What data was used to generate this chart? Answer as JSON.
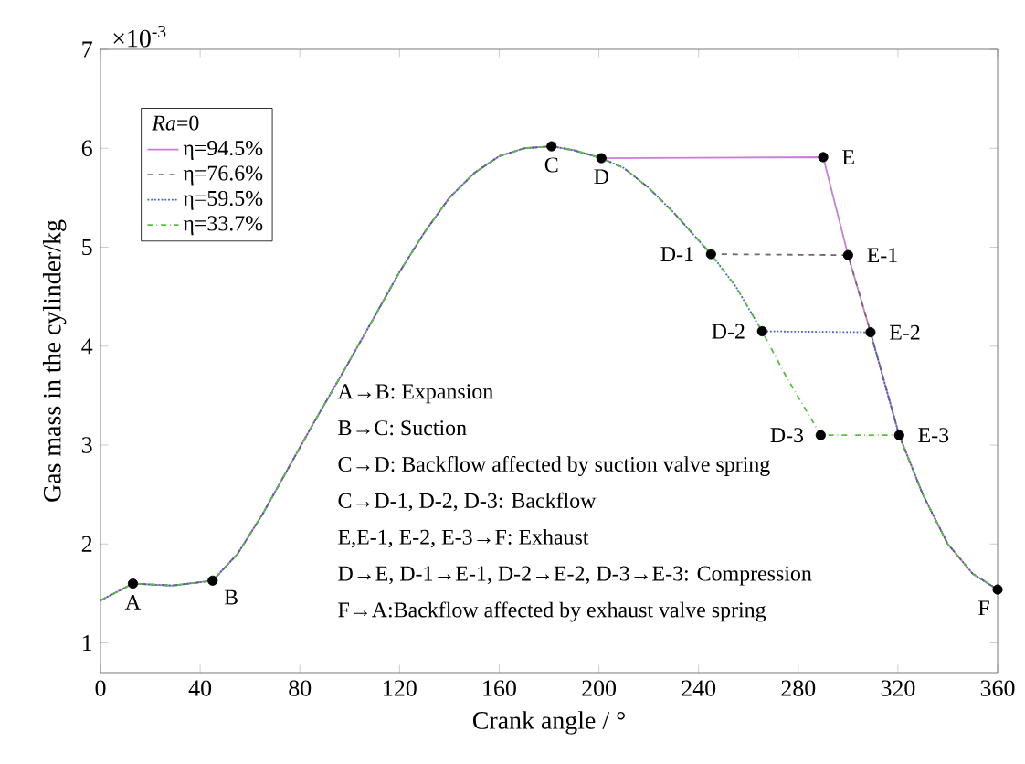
{
  "chart_data": {
    "type": "line",
    "xlabel": "Crank angle / °",
    "ylabel": "Gas mass in the cylinder/kg",
    "xlim": [
      0,
      360
    ],
    "ylim": [
      0.7,
      7
    ],
    "xticks": [
      0,
      40,
      80,
      120,
      160,
      200,
      240,
      280,
      320,
      360
    ],
    "yticks": [
      1,
      2,
      3,
      4,
      5,
      6,
      7
    ],
    "legend": "top left",
    "legend_title": "*Ra*=0",
    "grid": false,
    "series": [
      {
        "name": "η=94.5%",
        "color": "#c77fd6",
        "line_style": "solid",
        "x": [
          0,
          13,
          29,
          45,
          55,
          65,
          75,
          85,
          99,
          110,
          120,
          130,
          140,
          150,
          160,
          170,
          181,
          190,
          201,
          290,
          300,
          309,
          320.5,
          330,
          340,
          350,
          360
        ],
        "values": [
          1.43,
          1.6,
          1.58,
          1.63,
          1.9,
          2.3,
          2.75,
          3.2,
          3.81,
          4.3,
          4.75,
          5.15,
          5.5,
          5.75,
          5.92,
          6.0,
          6.02,
          5.98,
          5.9,
          5.91,
          4.92,
          4.14,
          3.1,
          2.5,
          2.0,
          1.7,
          1.54
        ]
      },
      {
        "name": "η=76.6%",
        "color": "#7a6464",
        "line_style": "dashed",
        "x": [
          0,
          13,
          29,
          45,
          55,
          65,
          75,
          85,
          99,
          110,
          120,
          130,
          140,
          150,
          160,
          170,
          181,
          190,
          201,
          210,
          220,
          230,
          245,
          300,
          309,
          320.5,
          330,
          340,
          350,
          360
        ],
        "values": [
          1.43,
          1.6,
          1.58,
          1.63,
          1.9,
          2.3,
          2.75,
          3.2,
          3.81,
          4.3,
          4.75,
          5.15,
          5.5,
          5.75,
          5.92,
          6.0,
          6.02,
          5.98,
          5.9,
          5.8,
          5.6,
          5.35,
          4.93,
          4.92,
          4.14,
          3.1,
          2.5,
          2.0,
          1.7,
          1.54
        ]
      },
      {
        "name": "η=59.5%",
        "color": "#3f5fd0",
        "line_style": "dotted",
        "x": [
          0,
          13,
          29,
          45,
          55,
          65,
          75,
          85,
          99,
          110,
          120,
          130,
          140,
          150,
          160,
          170,
          181,
          190,
          201,
          210,
          220,
          230,
          245,
          255,
          265.5,
          309,
          320.5,
          330,
          340,
          350,
          360
        ],
        "values": [
          1.43,
          1.6,
          1.58,
          1.63,
          1.9,
          2.3,
          2.75,
          3.2,
          3.81,
          4.3,
          4.75,
          5.15,
          5.5,
          5.75,
          5.92,
          6.0,
          6.02,
          5.98,
          5.9,
          5.8,
          5.6,
          5.35,
          4.93,
          4.6,
          4.15,
          4.14,
          3.1,
          2.5,
          2.0,
          1.7,
          1.54
        ]
      },
      {
        "name": "η=33.7%",
        "color": "#55c040",
        "line_style": "dashdot",
        "x": [
          0,
          13,
          29,
          45,
          55,
          65,
          75,
          85,
          99,
          110,
          120,
          130,
          140,
          150,
          160,
          170,
          181,
          190,
          201,
          210,
          220,
          230,
          245,
          255,
          265.5,
          275,
          289,
          320.5,
          330,
          340,
          350,
          360
        ],
        "values": [
          1.43,
          1.6,
          1.58,
          1.63,
          1.9,
          2.3,
          2.75,
          3.2,
          3.81,
          4.3,
          4.75,
          5.15,
          5.5,
          5.75,
          5.92,
          6.0,
          6.02,
          5.98,
          5.9,
          5.8,
          5.6,
          5.35,
          4.93,
          4.6,
          4.15,
          3.7,
          3.1,
          3.1,
          2.5,
          2.0,
          1.7,
          1.54
        ]
      },
      {
        "type": "scatter",
        "color": "#000000",
        "marker": "circle",
        "x": [
          13,
          45,
          181,
          201,
          290,
          245,
          300,
          265.5,
          309,
          289,
          320.5,
          360
        ],
        "values": [
          1.6,
          1.63,
          6.02,
          5.9,
          5.91,
          4.93,
          4.92,
          4.15,
          4.14,
          3.1,
          3.1,
          1.54
        ]
      }
    ],
    "annotations": [
      "×10$^{-3}$",
      "A→B: Expansion",
      "B→C: Suction",
      "C→D: Backflow affected by suction valve spring",
      "C→D-1, D-2, D-3: Backflow",
      "E,E-1, E-2, E-3→F: Exhaust",
      "D→E, D-1→E-1, D-2→E-2, D-3→E-3: Compression",
      "F→A:Backflow affected by exhaust valve spring",
      {
        "text": "A",
        "x": 13,
        "y": 1.6
      },
      {
        "text": "B",
        "x": 45,
        "y": 1.63
      },
      {
        "text": "C",
        "x": 181,
        "y": 6.02
      },
      {
        "text": "D",
        "x": 201,
        "y": 5.9
      },
      {
        "text": "E",
        "x": 290,
        "y": 5.91
      },
      {
        "text": "D-1",
        "x": 245,
        "y": 4.93
      },
      {
        "text": "E-1",
        "x": 300,
        "y": 4.92
      },
      {
        "text": "D-2",
        "x": 265.5,
        "y": 4.15
      },
      {
        "text": "E-2",
        "x": 309,
        "y": 4.14
      },
      {
        "text": "D-3",
        "x": 289,
        "y": 3.1
      },
      {
        "text": "E-3",
        "x": 320.5,
        "y": 3.1
      },
      {
        "text": "F",
        "x": 360,
        "y": 1.54
      }
    ]
  }
}
